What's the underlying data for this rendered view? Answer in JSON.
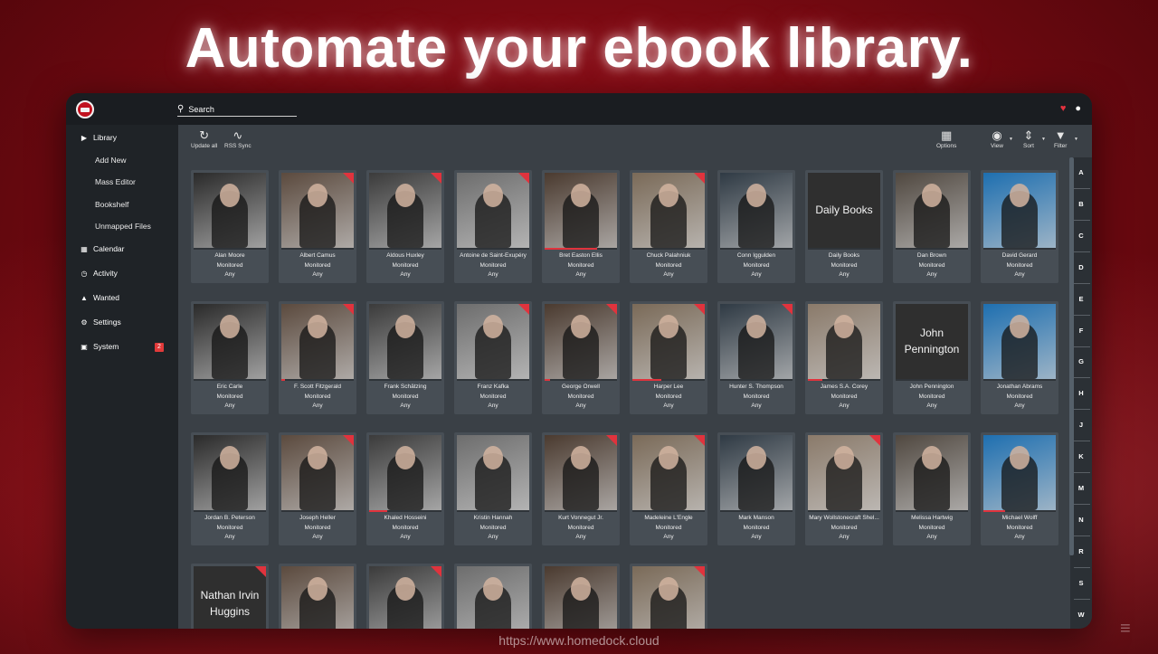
{
  "headline": "Automate your ebook library.",
  "footer_url": "https://www.homedock.cloud",
  "colors": {
    "accent": "#e0333d",
    "window_bg": "#2b3035",
    "content_bg": "#3a4046"
  },
  "search": {
    "placeholder": "Search"
  },
  "sidebar": {
    "library": "Library",
    "library_sub": [
      "Add New",
      "Mass Editor",
      "Bookshelf",
      "Unmapped Files"
    ],
    "items": [
      {
        "label": "Calendar",
        "icon": "calendar-icon"
      },
      {
        "label": "Activity",
        "icon": "clock-icon"
      },
      {
        "label": "Wanted",
        "icon": "warning-icon"
      },
      {
        "label": "Settings",
        "icon": "gears-icon"
      },
      {
        "label": "System",
        "icon": "monitor-icon",
        "badge": "2"
      }
    ]
  },
  "toolbar": {
    "update_all": "Update all",
    "rss_sync": "RSS Sync",
    "options": "Options",
    "view": "View",
    "sort": "Sort",
    "filter": "Filter"
  },
  "jump_letters": [
    "A",
    "B",
    "C",
    "D",
    "E",
    "F",
    "G",
    "H",
    "J",
    "K",
    "M",
    "N",
    "R",
    "S",
    "W"
  ],
  "authors": [
    {
      "name": "Alan Moore",
      "status": "Monitored",
      "profile": "Any",
      "flag": false,
      "progress": 0
    },
    {
      "name": "Albert Camus",
      "status": "Monitored",
      "profile": "Any",
      "flag": true,
      "progress": 0
    },
    {
      "name": "Aldous Huxley",
      "status": "Monitored",
      "profile": "Any",
      "flag": true,
      "progress": 0
    },
    {
      "name": "Antoine de Saint-Exupéry",
      "status": "Monitored",
      "profile": "Any",
      "flag": true,
      "progress": 0
    },
    {
      "name": "Bret Easton Ellis",
      "status": "Monitored",
      "profile": "Any",
      "flag": false,
      "progress": 0.72
    },
    {
      "name": "Chuck Palahniuk",
      "status": "Monitored",
      "profile": "Any",
      "flag": true,
      "progress": 0
    },
    {
      "name": "Conn Iggulden",
      "status": "Monitored",
      "profile": "Any",
      "flag": false,
      "progress": 0
    },
    {
      "name": "Daily Books",
      "status": "Monitored",
      "profile": "Any",
      "flag": false,
      "progress": 0,
      "poster_text": "Daily Books"
    },
    {
      "name": "Dan Brown",
      "status": "Monitored",
      "profile": "Any",
      "flag": false,
      "progress": 0
    },
    {
      "name": "David Gerard",
      "status": "Monitored",
      "profile": "Any",
      "flag": false,
      "progress": 0
    },
    {
      "name": "Eric Carle",
      "status": "Monitored",
      "profile": "Any",
      "flag": false,
      "progress": 0
    },
    {
      "name": "F. Scott Fitzgerald",
      "status": "Monitored",
      "profile": "Any",
      "flag": true,
      "progress": 0.05
    },
    {
      "name": "Frank Schätzing",
      "status": "Monitored",
      "profile": "Any",
      "flag": false,
      "progress": 0
    },
    {
      "name": "Franz Kafka",
      "status": "Monitored",
      "profile": "Any",
      "flag": true,
      "progress": 0
    },
    {
      "name": "George Orwell",
      "status": "Monitored",
      "profile": "Any",
      "flag": true,
      "progress": 0.08
    },
    {
      "name": "Harper Lee",
      "status": "Monitored",
      "profile": "Any",
      "flag": true,
      "progress": 0.4
    },
    {
      "name": "Hunter S. Thompson",
      "status": "Monitored",
      "profile": "Any",
      "flag": true,
      "progress": 0
    },
    {
      "name": "James S.A. Corey",
      "status": "Monitored",
      "profile": "Any",
      "flag": false,
      "progress": 0.2
    },
    {
      "name": "John Pennington",
      "status": "Monitored",
      "profile": "Any",
      "flag": false,
      "progress": 0,
      "poster_text": "John Pennington"
    },
    {
      "name": "Jonathan Abrams",
      "status": "Monitored",
      "profile": "Any",
      "flag": false,
      "progress": 0
    },
    {
      "name": "Jordan B. Peterson",
      "status": "Monitored",
      "profile": "Any",
      "flag": false,
      "progress": 0
    },
    {
      "name": "Joseph Heller",
      "status": "Monitored",
      "profile": "Any",
      "flag": true,
      "progress": 0
    },
    {
      "name": "Khaled Hosseini",
      "status": "Monitored",
      "profile": "Any",
      "flag": false,
      "progress": 0.25
    },
    {
      "name": "Kristin Hannah",
      "status": "Monitored",
      "profile": "Any",
      "flag": false,
      "progress": 0
    },
    {
      "name": "Kurt Vonnegut Jr.",
      "status": "Monitored",
      "profile": "Any",
      "flag": true,
      "progress": 0
    },
    {
      "name": "Madeleine L'Engle",
      "status": "Monitored",
      "profile": "Any",
      "flag": true,
      "progress": 0
    },
    {
      "name": "Mark Manson",
      "status": "Monitored",
      "profile": "Any",
      "flag": false,
      "progress": 0
    },
    {
      "name": "Mary Wollstonecraft Shel...",
      "status": "Monitored",
      "profile": "Any",
      "flag": true,
      "progress": 0
    },
    {
      "name": "Melissa Hartwig",
      "status": "Monitored",
      "profile": "Any",
      "flag": false,
      "progress": 0
    },
    {
      "name": "Michael Wolff",
      "status": "Monitored",
      "profile": "Any",
      "flag": false,
      "progress": 0.3
    },
    {
      "name": "",
      "status": "",
      "profile": "",
      "flag": true,
      "progress": 0,
      "poster_text": "Nathan Irvin Huggins"
    },
    {
      "name": "",
      "status": "",
      "profile": "",
      "flag": false,
      "progress": 0
    },
    {
      "name": "",
      "status": "",
      "profile": "",
      "flag": true,
      "progress": 0
    },
    {
      "name": "",
      "status": "",
      "profile": "",
      "flag": false,
      "progress": 0
    },
    {
      "name": "",
      "status": "",
      "profile": "",
      "flag": false,
      "progress": 0
    },
    {
      "name": "",
      "status": "",
      "profile": "",
      "flag": true,
      "progress": 0
    }
  ]
}
